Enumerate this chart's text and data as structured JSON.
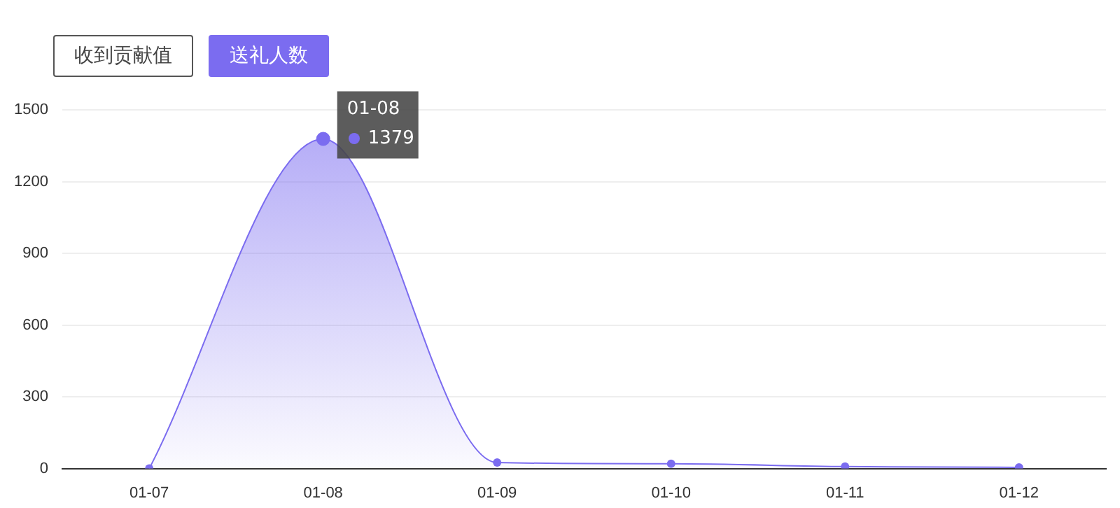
{
  "chart_data": {
    "type": "area",
    "categories": [
      "01-07",
      "01-08",
      "01-09",
      "01-10",
      "01-11",
      "01-12"
    ],
    "series": [
      {
        "name": "送礼人数",
        "color": "#7b6cf0",
        "values": [
          0,
          1379,
          25,
          20,
          8,
          5
        ]
      }
    ],
    "ylim": [
      0,
      1500
    ],
    "yticks": [
      0,
      300,
      600,
      900,
      1200,
      1500
    ],
    "grid": "y",
    "legend": "top left",
    "marker": "circle",
    "annotations": [
      "收到贡献值",
      "01-08",
      {
        "text": "1379",
        "x": "01-08",
        "y": 1379
      }
    ]
  }
}
